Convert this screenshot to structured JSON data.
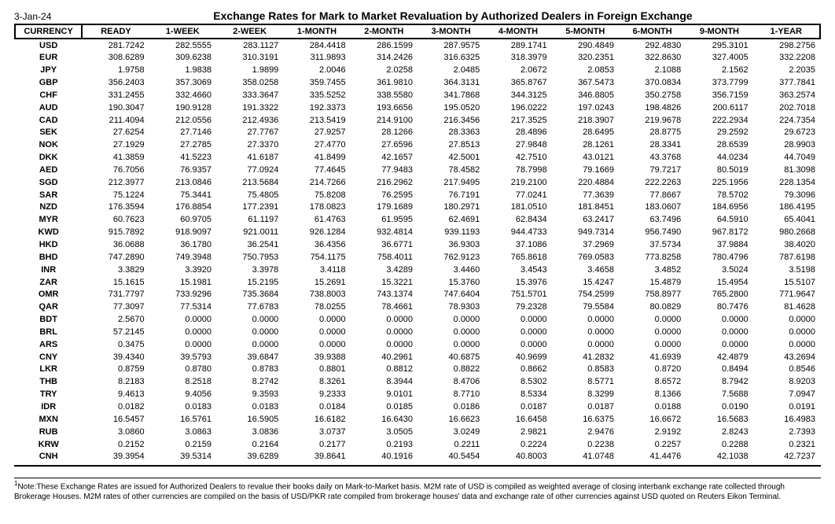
{
  "date": "3-Jan-24",
  "title": "Exchange Rates for Mark to Market Revaluation by Authorized Dealers in Foreign Exchange",
  "columns": [
    "CURRENCY",
    "READY",
    "1-WEEK",
    "2-WEEK",
    "1-MONTH",
    "2-MONTH",
    "3-MONTH",
    "4-MONTH",
    "5-MONTH",
    "6-MONTH",
    "9-MONTH",
    "1-YEAR"
  ],
  "rows": [
    [
      "USD",
      "281.7242",
      "282.5555",
      "283.1127",
      "284.4418",
      "286.1599",
      "287.9575",
      "289.1741",
      "290.4849",
      "292.4830",
      "295.3101",
      "298.2756"
    ],
    [
      "EUR",
      "308.6289",
      "309.6238",
      "310.3191",
      "311.9893",
      "314.2426",
      "316.6325",
      "318.3979",
      "320.2351",
      "322.8630",
      "327.4005",
      "332.2208"
    ],
    [
      "JPY",
      "1.9758",
      "1.9838",
      "1.9899",
      "2.0046",
      "2.0258",
      "2.0485",
      "2.0672",
      "2.0853",
      "2.1088",
      "2.1562",
      "2.2035"
    ],
    [
      "GBP",
      "356.2403",
      "357.3069",
      "358.0258",
      "359.7455",
      "361.9810",
      "364.3131",
      "365.8767",
      "367.5473",
      "370.0834",
      "373.7799",
      "377.7841"
    ],
    [
      "CHF",
      "331.2455",
      "332.4660",
      "333.3647",
      "335.5252",
      "338.5580",
      "341.7868",
      "344.3125",
      "346.8805",
      "350.2758",
      "356.7159",
      "363.2574"
    ],
    [
      "AUD",
      "190.3047",
      "190.9128",
      "191.3322",
      "192.3373",
      "193.6656",
      "195.0520",
      "196.0222",
      "197.0243",
      "198.4826",
      "200.6117",
      "202.7018"
    ],
    [
      "CAD",
      "211.4094",
      "212.0556",
      "212.4936",
      "213.5419",
      "214.9100",
      "216.3456",
      "217.3525",
      "218.3907",
      "219.9678",
      "222.2934",
      "224.7354"
    ],
    [
      "SEK",
      "27.6254",
      "27.7146",
      "27.7767",
      "27.9257",
      "28.1266",
      "28.3363",
      "28.4896",
      "28.6495",
      "28.8775",
      "29.2592",
      "29.6723"
    ],
    [
      "NOK",
      "27.1929",
      "27.2785",
      "27.3370",
      "27.4770",
      "27.6596",
      "27.8513",
      "27.9848",
      "28.1261",
      "28.3341",
      "28.6539",
      "28.9903"
    ],
    [
      "DKK",
      "41.3859",
      "41.5223",
      "41.6187",
      "41.8499",
      "42.1657",
      "42.5001",
      "42.7510",
      "43.0121",
      "43.3768",
      "44.0234",
      "44.7049"
    ],
    [
      "AED",
      "76.7056",
      "76.9357",
      "77.0924",
      "77.4645",
      "77.9483",
      "78.4582",
      "78.7998",
      "79.1669",
      "79.7217",
      "80.5019",
      "81.3098"
    ],
    [
      "SGD",
      "212.3977",
      "213.0846",
      "213.5684",
      "214.7266",
      "216.2962",
      "217.9495",
      "219.2100",
      "220.4884",
      "222.2263",
      "225.1956",
      "228.1354"
    ],
    [
      "SAR",
      "75.1224",
      "75.3441",
      "75.4805",
      "75.8208",
      "76.2595",
      "76.7191",
      "77.0241",
      "77.3639",
      "77.8667",
      "78.5702",
      "79.3096"
    ],
    [
      "NZD",
      "176.3594",
      "176.8854",
      "177.2391",
      "178.0823",
      "179.1689",
      "180.2971",
      "181.0510",
      "181.8451",
      "183.0607",
      "184.6956",
      "186.4195"
    ],
    [
      "MYR",
      "60.7623",
      "60.9705",
      "61.1197",
      "61.4763",
      "61.9595",
      "62.4691",
      "62.8434",
      "63.2417",
      "63.7496",
      "64.5910",
      "65.4041"
    ],
    [
      "KWD",
      "915.7892",
      "918.9097",
      "921.0011",
      "926.1284",
      "932.4814",
      "939.1193",
      "944.4733",
      "949.7314",
      "956.7490",
      "967.8172",
      "980.2668"
    ],
    [
      "HKD",
      "36.0688",
      "36.1780",
      "36.2541",
      "36.4356",
      "36.6771",
      "36.9303",
      "37.1086",
      "37.2969",
      "37.5734",
      "37.9884",
      "38.4020"
    ],
    [
      "BHD",
      "747.2890",
      "749.3948",
      "750.7953",
      "754.1175",
      "758.4011",
      "762.9123",
      "765.8618",
      "769.0583",
      "773.8258",
      "780.4796",
      "787.6198"
    ],
    [
      "INR",
      "3.3829",
      "3.3920",
      "3.3978",
      "3.4118",
      "3.4289",
      "3.4460",
      "3.4543",
      "3.4658",
      "3.4852",
      "3.5024",
      "3.5198"
    ],
    [
      "ZAR",
      "15.1615",
      "15.1981",
      "15.2195",
      "15.2691",
      "15.3221",
      "15.3760",
      "15.3976",
      "15.4247",
      "15.4879",
      "15.4954",
      "15.5107"
    ],
    [
      "OMR",
      "731.7797",
      "733.9296",
      "735.3684",
      "738.8003",
      "743.1374",
      "747.6404",
      "751.5701",
      "754.2599",
      "758.8977",
      "765.2800",
      "771.9647"
    ],
    [
      "QAR",
      "77.3097",
      "77.5314",
      "77.6783",
      "78.0255",
      "78.4661",
      "78.9303",
      "79.2328",
      "79.5584",
      "80.0829",
      "80.7476",
      "81.4628"
    ],
    [
      "BDT",
      "2.5670",
      "0.0000",
      "0.0000",
      "0.0000",
      "0.0000",
      "0.0000",
      "0.0000",
      "0.0000",
      "0.0000",
      "0.0000",
      "0.0000"
    ],
    [
      "BRL",
      "57.2145",
      "0.0000",
      "0.0000",
      "0.0000",
      "0.0000",
      "0.0000",
      "0.0000",
      "0.0000",
      "0.0000",
      "0.0000",
      "0.0000"
    ],
    [
      "ARS",
      "0.3475",
      "0.0000",
      "0.0000",
      "0.0000",
      "0.0000",
      "0.0000",
      "0.0000",
      "0.0000",
      "0.0000",
      "0.0000",
      "0.0000"
    ],
    [
      "CNY",
      "39.4340",
      "39.5793",
      "39.6847",
      "39.9388",
      "40.2961",
      "40.6875",
      "40.9699",
      "41.2832",
      "41.6939",
      "42.4879",
      "43.2694"
    ],
    [
      "LKR",
      "0.8759",
      "0.8780",
      "0.8783",
      "0.8801",
      "0.8812",
      "0.8822",
      "0.8662",
      "0.8583",
      "0.8720",
      "0.8494",
      "0.8546"
    ],
    [
      "THB",
      "8.2183",
      "8.2518",
      "8.2742",
      "8.3261",
      "8.3944",
      "8.4706",
      "8.5302",
      "8.5771",
      "8.6572",
      "8.7942",
      "8.9203"
    ],
    [
      "TRY",
      "9.4613",
      "9.4056",
      "9.3593",
      "9.2333",
      "9.0101",
      "8.7710",
      "8.5334",
      "8.3299",
      "8.1366",
      "7.5688",
      "7.0947"
    ],
    [
      "IDR",
      "0.0182",
      "0.0183",
      "0.0183",
      "0.0184",
      "0.0185",
      "0.0186",
      "0.0187",
      "0.0187",
      "0.0188",
      "0.0190",
      "0.0191"
    ],
    [
      "MXN",
      "16.5457",
      "16.5761",
      "16.5905",
      "16.6182",
      "16.6430",
      "16.6623",
      "16.6458",
      "16.6375",
      "16.6672",
      "16.5683",
      "16.4983"
    ],
    [
      "RUB",
      "3.0860",
      "3.0863",
      "3.0836",
      "3.0737",
      "3.0505",
      "3.0249",
      "2.9821",
      "2.9476",
      "2.9192",
      "2.8243",
      "2.7393"
    ],
    [
      "KRW",
      "0.2152",
      "0.2159",
      "0.2164",
      "0.2177",
      "0.2193",
      "0.2211",
      "0.2224",
      "0.2238",
      "0.2257",
      "0.2288",
      "0.2321"
    ],
    [
      "CNH",
      "39.3954",
      "39.5314",
      "39.6289",
      "39.8641",
      "40.1916",
      "40.5454",
      "40.8003",
      "41.0748",
      "41.4476",
      "42.1038",
      "42.7237"
    ]
  ],
  "footnote": "Note:These Exchange Rates are issued for Authorized Dealers to revalue their books daily on Mark-to-Market basis. M2M rate of USD is compiled as weighted average of closing interbank exchange rate collected through Brokerage Houses. M2M rates of other currencies are compiled on the basis of USD/PKR rate compiled from brokerage houses' data and exchange rate of other currencies against USD quoted on Reuters Eikon Terminal."
}
